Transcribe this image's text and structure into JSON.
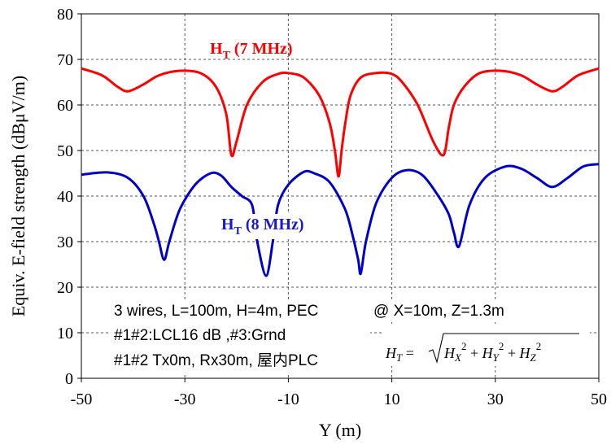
{
  "chart_data": {
    "type": "line",
    "xlabel": "Y (m)",
    "ylabel": "Equiv. E-field strength (dBμV/m)",
    "xlim": [
      -50,
      50
    ],
    "ylim": [
      0,
      80
    ],
    "xticks": [
      -50,
      -30,
      -10,
      10,
      30,
      50
    ],
    "yticks": [
      0,
      10,
      20,
      30,
      40,
      50,
      60,
      70,
      80
    ],
    "grid": true,
    "series": [
      {
        "name": "HT (7 MHz)",
        "label_main": "H",
        "label_sub": "T",
        "label_rest": " (7 MHz)",
        "color": "#ff0000",
        "x": [
          -50,
          -46,
          -43,
          -41,
          -38,
          -35,
          -31,
          -27,
          -24,
          -22,
          -21,
          -20,
          -18,
          -15,
          -12,
          -10,
          -7,
          -4,
          -2,
          -1,
          -0.3,
          0.3,
          1,
          2,
          4,
          7,
          10,
          12,
          15,
          18,
          20,
          21,
          22,
          24,
          27,
          31,
          35,
          38,
          41,
          43,
          46,
          50
        ],
        "y": [
          68,
          66.5,
          64,
          63,
          64.5,
          66.5,
          67.5,
          67,
          64,
          58,
          49,
          52,
          60,
          65,
          66.8,
          67,
          66,
          62,
          56,
          50,
          44.3,
          50,
          56,
          62,
          66,
          67,
          66.8,
          65,
          60,
          52,
          49,
          55,
          60,
          64,
          67,
          67.5,
          66.5,
          64.5,
          63,
          64,
          66.5,
          68
        ]
      },
      {
        "name": "HT (8 MHz)",
        "label_main": "H",
        "label_sub": "T",
        "label_rest": " (8 MHz)",
        "color": "#0000cc",
        "x": [
          -50,
          -45,
          -41,
          -38,
          -36,
          -35,
          -34,
          -33,
          -31,
          -28,
          -25,
          -23,
          -21,
          -19,
          -17,
          -16,
          -14.3,
          -13,
          -12,
          -10,
          -7,
          -5,
          -2,
          1,
          2.5,
          3.5,
          4,
          5,
          7,
          10,
          13,
          16,
          19,
          21,
          22,
          23,
          25,
          28,
          32,
          35,
          38,
          41,
          44,
          47,
          50
        ],
        "y": [
          44.7,
          45.2,
          44,
          40,
          34,
          30,
          26,
          30,
          37,
          42.5,
          45,
          44.5,
          42,
          40,
          38,
          30,
          22.5,
          30,
          38,
          42.5,
          45.3,
          45,
          43,
          37,
          31,
          26,
          23,
          30,
          38.5,
          44,
          45.7,
          44.5,
          40,
          36,
          32,
          29,
          38,
          44,
          46.5,
          46,
          44,
          42,
          44,
          46.5,
          47
        ]
      }
    ],
    "annotations": [
      "3 wires, L=100m, H=4m, PEC",
      "#1#2:LCL16 dB ,#3:Grnd",
      "#1#2 Tx0m, Rx30m, 屋内PLC",
      "@ X=10m, Z=1.3m"
    ],
    "formula": {
      "lhs": "H",
      "lhs_sub": "T",
      "terms": [
        "H",
        "X",
        "H",
        "Y",
        "H",
        "Z"
      ]
    }
  }
}
